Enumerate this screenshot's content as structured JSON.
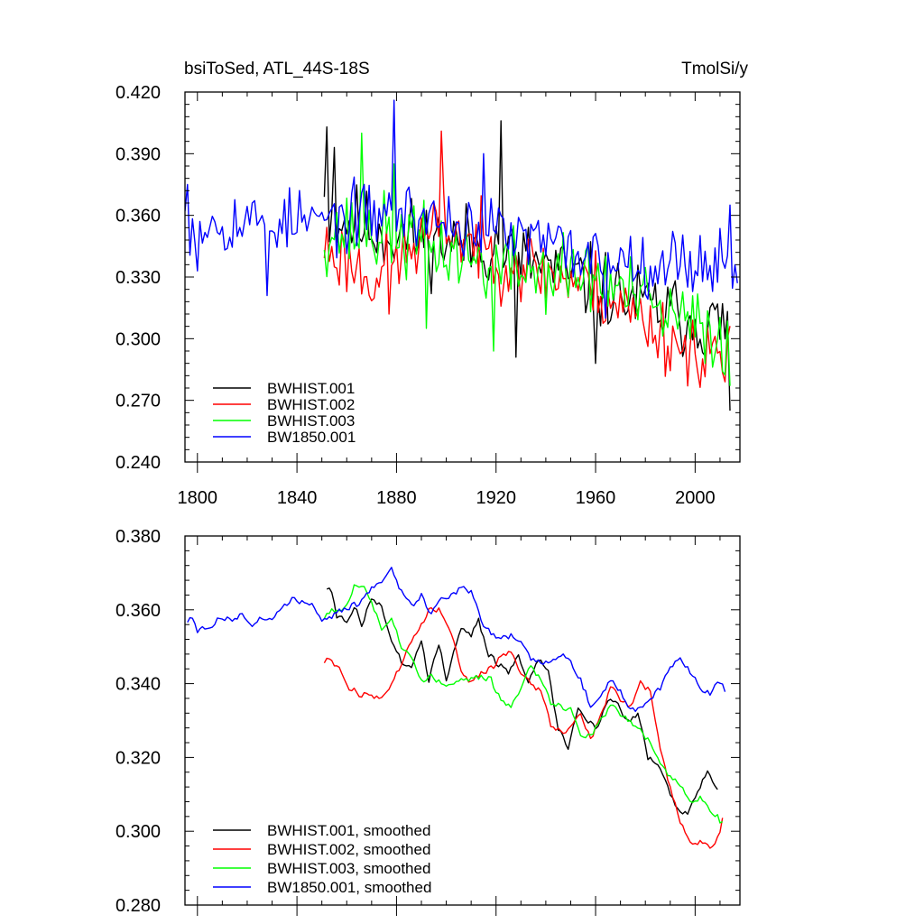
{
  "chart_data": [
    {
      "type": "line",
      "title_left": "bsiToSed, ATL_44S-18S",
      "title_right": "TmolSi/y",
      "xlim": [
        1795,
        2018
      ],
      "ylim": [
        0.24,
        0.42
      ],
      "yticks": [
        0.24,
        0.27,
        0.3,
        0.33,
        0.36,
        0.39,
        0.42
      ],
      "ytick_labels": [
        "0.240",
        "0.270",
        "0.300",
        "0.330",
        "0.360",
        "0.390",
        "0.420"
      ],
      "xticks": [
        1800,
        1840,
        1880,
        1920,
        1960,
        2000
      ],
      "xtick_labels": [
        "1800",
        "1840",
        "1880",
        "1920",
        "1960",
        "2000"
      ],
      "legend": "bottom-left",
      "series": [
        {
          "name": "BWHIST.001",
          "color": "#000000",
          "start": 1851,
          "end": 2014,
          "step": 1,
          "trend": [
            [
              1851,
              0.36
            ],
            [
              1880,
              0.35
            ],
            [
              1920,
              0.345
            ],
            [
              1960,
              0.325
            ],
            [
              1990,
              0.312
            ],
            [
              2014,
              0.305
            ]
          ],
          "noise": 0.016,
          "seed": 11,
          "highlights": [
            [
              1851,
              0.369
            ],
            [
              1852,
              0.403
            ],
            [
              1855,
              0.393
            ],
            [
              1922,
              0.406
            ],
            [
              1928,
              0.291
            ],
            [
              1960,
              0.288
            ],
            [
              2014,
              0.265
            ]
          ]
        },
        {
          "name": "BWHIST.002",
          "color": "#ff0000",
          "start": 1851,
          "end": 2014,
          "step": 1,
          "trend": [
            [
              1851,
              0.345
            ],
            [
              1870,
              0.33
            ],
            [
              1900,
              0.355
            ],
            [
              1920,
              0.34
            ],
            [
              1960,
              0.325
            ],
            [
              1990,
              0.3
            ],
            [
              2014,
              0.29
            ]
          ],
          "noise": 0.015,
          "seed": 23,
          "highlights": [
            [
              1898,
              0.401
            ],
            [
              1877,
              0.312
            ],
            [
              1997,
              0.277
            ],
            [
              2012,
              0.279
            ]
          ]
        },
        {
          "name": "BWHIST.003",
          "color": "#00ff00",
          "start": 1851,
          "end": 2014,
          "step": 1,
          "trend": [
            [
              1851,
              0.352
            ],
            [
              1880,
              0.35
            ],
            [
              1920,
              0.335
            ],
            [
              1960,
              0.33
            ],
            [
              1990,
              0.31
            ],
            [
              2014,
              0.3
            ]
          ],
          "noise": 0.016,
          "seed": 37,
          "highlights": [
            [
              1866,
              0.4
            ],
            [
              1879,
              0.385
            ],
            [
              1892,
              0.305
            ],
            [
              1919,
              0.294
            ],
            [
              2014,
              0.277
            ]
          ]
        },
        {
          "name": "BW1850.001",
          "color": "#0000ff",
          "start": 1795,
          "end": 2017,
          "step": 1,
          "trend": [
            [
              1795,
              0.357
            ],
            [
              1850,
              0.357
            ],
            [
              1880,
              0.362
            ],
            [
              1920,
              0.352
            ],
            [
              1960,
              0.34
            ],
            [
              1990,
              0.337
            ],
            [
              2017,
              0.338
            ]
          ],
          "noise": 0.013,
          "seed": 53,
          "highlights": [
            [
              1795,
              0.362
            ],
            [
              1796,
              0.375
            ],
            [
              1800,
              0.333
            ],
            [
              1828,
              0.321
            ],
            [
              1879,
              0.416
            ],
            [
              1915,
              0.39
            ],
            [
              1964,
              0.31
            ],
            [
              2014,
              0.365
            ],
            [
              2017,
              0.327
            ]
          ]
        }
      ]
    },
    {
      "type": "line",
      "xlim": [
        1795,
        2018
      ],
      "ylim": [
        0.28,
        0.38
      ],
      "yticks": [
        0.28,
        0.3,
        0.32,
        0.34,
        0.36,
        0.38
      ],
      "ytick_labels": [
        "0.280",
        "0.300",
        "0.320",
        "0.340",
        "0.360",
        "0.380"
      ],
      "xticks": [
        1800,
        1840,
        1880,
        1920,
        1960,
        2000
      ],
      "legend": "bottom-left",
      "series": [
        {
          "name": "BWHIST.001, smoothed",
          "color": "#000000",
          "start": 1852,
          "end": 2009,
          "step": 1,
          "points": [
            [
              1852,
              0.366
            ],
            [
              1854,
              0.365
            ],
            [
              1856,
              0.358
            ],
            [
              1860,
              0.357
            ],
            [
              1863,
              0.361
            ],
            [
              1866,
              0.356
            ],
            [
              1870,
              0.363
            ],
            [
              1874,
              0.361
            ],
            [
              1878,
              0.352
            ],
            [
              1882,
              0.346
            ],
            [
              1886,
              0.344
            ],
            [
              1890,
              0.352
            ],
            [
              1893,
              0.341
            ],
            [
              1897,
              0.351
            ],
            [
              1900,
              0.341
            ],
            [
              1903,
              0.349
            ],
            [
              1906,
              0.355
            ],
            [
              1910,
              0.353
            ],
            [
              1913,
              0.357
            ],
            [
              1917,
              0.348
            ],
            [
              1921,
              0.345
            ],
            [
              1925,
              0.343
            ],
            [
              1929,
              0.348
            ],
            [
              1933,
              0.34
            ],
            [
              1937,
              0.347
            ],
            [
              1941,
              0.343
            ],
            [
              1945,
              0.328
            ],
            [
              1949,
              0.323
            ],
            [
              1953,
              0.333
            ],
            [
              1957,
              0.33
            ],
            [
              1961,
              0.328
            ],
            [
              1965,
              0.336
            ],
            [
              1969,
              0.334
            ],
            [
              1973,
              0.33
            ],
            [
              1977,
              0.332
            ],
            [
              1981,
              0.32
            ],
            [
              1985,
              0.318
            ],
            [
              1989,
              0.312
            ],
            [
              1993,
              0.306
            ],
            [
              1997,
              0.305
            ],
            [
              2001,
              0.311
            ],
            [
              2005,
              0.316
            ],
            [
              2009,
              0.312
            ]
          ]
        },
        {
          "name": "BWHIST.002, smoothed",
          "color": "#ff0000",
          "start": 1851,
          "end": 2011,
          "step": 1,
          "points": [
            [
              1851,
              0.346
            ],
            [
              1853,
              0.347
            ],
            [
              1855,
              0.345
            ],
            [
              1858,
              0.343
            ],
            [
              1861,
              0.339
            ],
            [
              1865,
              0.337
            ],
            [
              1869,
              0.337
            ],
            [
              1873,
              0.336
            ],
            [
              1877,
              0.339
            ],
            [
              1881,
              0.344
            ],
            [
              1885,
              0.35
            ],
            [
              1889,
              0.355
            ],
            [
              1893,
              0.36
            ],
            [
              1897,
              0.36
            ],
            [
              1900,
              0.357
            ],
            [
              1903,
              0.352
            ],
            [
              1906,
              0.343
            ],
            [
              1910,
              0.34
            ],
            [
              1914,
              0.343
            ],
            [
              1918,
              0.344
            ],
            [
              1922,
              0.347
            ],
            [
              1926,
              0.349
            ],
            [
              1930,
              0.343
            ],
            [
              1934,
              0.34
            ],
            [
              1938,
              0.338
            ],
            [
              1942,
              0.329
            ],
            [
              1946,
              0.327
            ],
            [
              1950,
              0.328
            ],
            [
              1954,
              0.332
            ],
            [
              1958,
              0.325
            ],
            [
              1962,
              0.331
            ],
            [
              1966,
              0.339
            ],
            [
              1970,
              0.336
            ],
            [
              1974,
              0.334
            ],
            [
              1978,
              0.34
            ],
            [
              1982,
              0.338
            ],
            [
              1986,
              0.322
            ],
            [
              1990,
              0.312
            ],
            [
              1994,
              0.303
            ],
            [
              1998,
              0.297
            ],
            [
              2002,
              0.297
            ],
            [
              2006,
              0.296
            ],
            [
              2009,
              0.298
            ],
            [
              2011,
              0.303
            ]
          ]
        },
        {
          "name": "BWHIST.003, smoothed",
          "color": "#00ff00",
          "start": 1851,
          "end": 2011,
          "step": 1,
          "points": [
            [
              1851,
              0.358
            ],
            [
              1854,
              0.36
            ],
            [
              1857,
              0.359
            ],
            [
              1860,
              0.362
            ],
            [
              1863,
              0.366
            ],
            [
              1866,
              0.367
            ],
            [
              1870,
              0.362
            ],
            [
              1874,
              0.355
            ],
            [
              1878,
              0.358
            ],
            [
              1882,
              0.35
            ],
            [
              1886,
              0.347
            ],
            [
              1890,
              0.341
            ],
            [
              1894,
              0.342
            ],
            [
              1898,
              0.34
            ],
            [
              1902,
              0.34
            ],
            [
              1906,
              0.341
            ],
            [
              1910,
              0.341
            ],
            [
              1914,
              0.342
            ],
            [
              1918,
              0.341
            ],
            [
              1922,
              0.335
            ],
            [
              1926,
              0.334
            ],
            [
              1930,
              0.339
            ],
            [
              1934,
              0.345
            ],
            [
              1938,
              0.341
            ],
            [
              1942,
              0.335
            ],
            [
              1946,
              0.334
            ],
            [
              1950,
              0.333
            ],
            [
              1954,
              0.326
            ],
            [
              1958,
              0.326
            ],
            [
              1962,
              0.33
            ],
            [
              1966,
              0.334
            ],
            [
              1970,
              0.332
            ],
            [
              1974,
              0.33
            ],
            [
              1978,
              0.327
            ],
            [
              1982,
              0.324
            ],
            [
              1986,
              0.318
            ],
            [
              1990,
              0.315
            ],
            [
              1994,
              0.313
            ],
            [
              1998,
              0.308
            ],
            [
              2002,
              0.309
            ],
            [
              2006,
              0.306
            ],
            [
              2009,
              0.304
            ],
            [
              2011,
              0.302
            ]
          ]
        },
        {
          "name": "BW1850.001, smoothed",
          "color": "#0000ff",
          "start": 1796,
          "end": 2012,
          "step": 1,
          "points": [
            [
              1796,
              0.357
            ],
            [
              1798,
              0.358
            ],
            [
              1800,
              0.354
            ],
            [
              1803,
              0.355
            ],
            [
              1806,
              0.356
            ],
            [
              1810,
              0.358
            ],
            [
              1814,
              0.357
            ],
            [
              1818,
              0.359
            ],
            [
              1822,
              0.356
            ],
            [
              1826,
              0.358
            ],
            [
              1830,
              0.357
            ],
            [
              1834,
              0.361
            ],
            [
              1838,
              0.363
            ],
            [
              1842,
              0.362
            ],
            [
              1846,
              0.362
            ],
            [
              1850,
              0.357
            ],
            [
              1854,
              0.358
            ],
            [
              1858,
              0.36
            ],
            [
              1862,
              0.361
            ],
            [
              1866,
              0.362
            ],
            [
              1870,
              0.366
            ],
            [
              1874,
              0.368
            ],
            [
              1878,
              0.371
            ],
            [
              1882,
              0.365
            ],
            [
              1886,
              0.361
            ],
            [
              1890,
              0.364
            ],
            [
              1894,
              0.359
            ],
            [
              1898,
              0.363
            ],
            [
              1902,
              0.364
            ],
            [
              1906,
              0.366
            ],
            [
              1910,
              0.365
            ],
            [
              1914,
              0.357
            ],
            [
              1918,
              0.354
            ],
            [
              1922,
              0.352
            ],
            [
              1926,
              0.353
            ],
            [
              1930,
              0.351
            ],
            [
              1934,
              0.347
            ],
            [
              1938,
              0.346
            ],
            [
              1942,
              0.346
            ],
            [
              1946,
              0.348
            ],
            [
              1950,
              0.346
            ],
            [
              1954,
              0.341
            ],
            [
              1958,
              0.334
            ],
            [
              1962,
              0.336
            ],
            [
              1966,
              0.341
            ],
            [
              1970,
              0.338
            ],
            [
              1974,
              0.333
            ],
            [
              1978,
              0.333
            ],
            [
              1982,
              0.336
            ],
            [
              1986,
              0.339
            ],
            [
              1990,
              0.344
            ],
            [
              1994,
              0.347
            ],
            [
              1998,
              0.343
            ],
            [
              2002,
              0.339
            ],
            [
              2006,
              0.337
            ],
            [
              2009,
              0.341
            ],
            [
              2011,
              0.34
            ],
            [
              2012,
              0.337
            ]
          ]
        }
      ]
    }
  ]
}
